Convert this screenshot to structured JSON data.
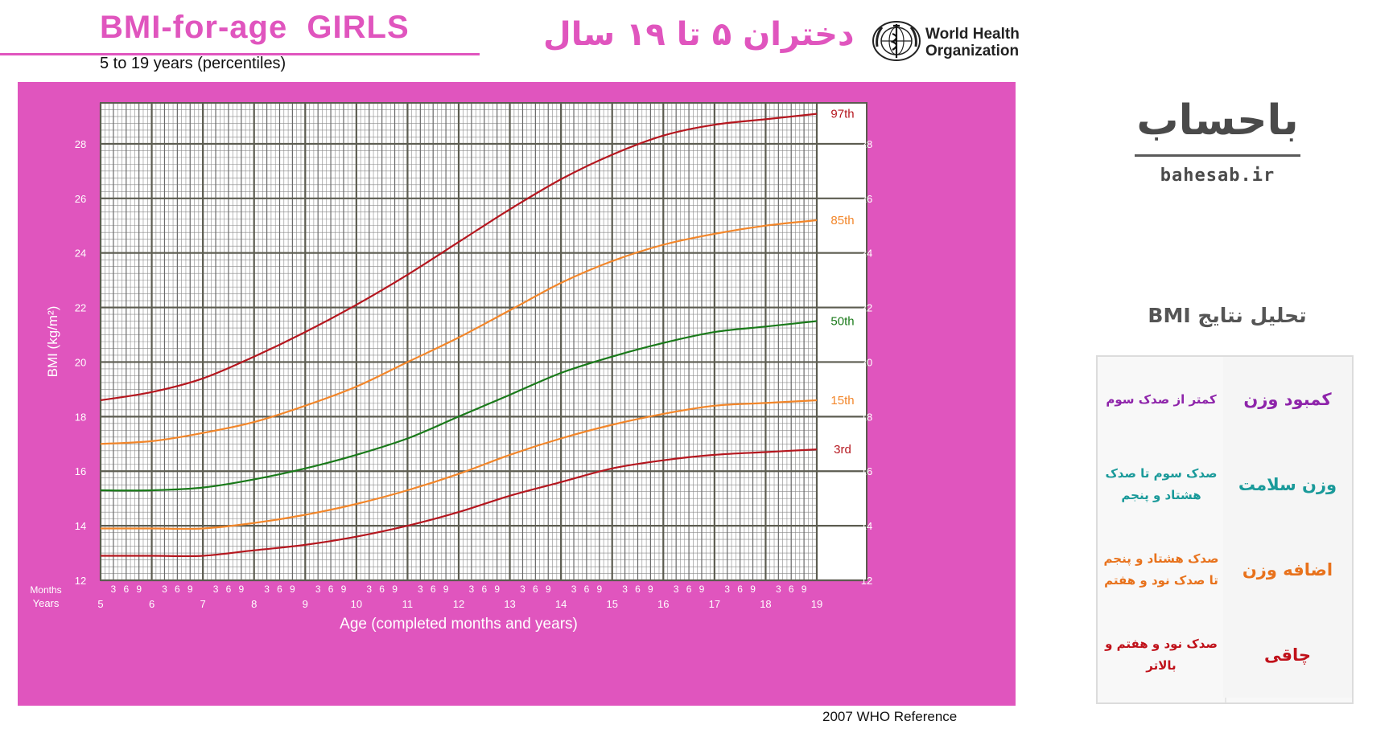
{
  "header": {
    "title": "BMI-for-age  GIRLS",
    "subtitle": "5 to 19 years (percentiles)",
    "title_fa": "دختران ۵ تا ۱۹ سال",
    "who_line1": "World Health",
    "who_line2": "Organization",
    "accent_color": "#e055be"
  },
  "footer": {
    "reference": "2007 WHO Reference"
  },
  "brand": {
    "logo_text": "باحساب",
    "url": "bahesab.ir"
  },
  "analysis": {
    "title": "تحلیل نتایج BMI",
    "rows": [
      {
        "status": "کمبود وزن",
        "range": "کمتر از صدک سوم",
        "color": "#8e24aa"
      },
      {
        "status": "وزن سلامت",
        "range": "صدک سوم تا صدک هشتاد و پنجم",
        "color": "#1a9a9a"
      },
      {
        "status": "اضافه وزن",
        "range": "صدک هشتاد و پنجم تا صدک نود و هفتم",
        "color": "#e8721c"
      },
      {
        "status": "چاقی",
        "range": "صدک نود و هفتم و بالاتر",
        "color": "#c0111a"
      }
    ]
  },
  "chart_data": {
    "type": "line",
    "title": "BMI-for-age  GIRLS",
    "subtitle": "5 to 19 years (percentiles)",
    "xlabel": "Age (completed months and years)",
    "ylabel": "BMI (kg/m²)",
    "xlim": [
      5,
      19
    ],
    "ylim": [
      12,
      29.5
    ],
    "x_ticks": [
      5,
      6,
      7,
      8,
      9,
      10,
      11,
      12,
      13,
      14,
      15,
      16,
      17,
      18,
      19
    ],
    "y_ticks": [
      12,
      14,
      16,
      18,
      20,
      22,
      24,
      26,
      28
    ],
    "month_ticks": [
      "3",
      "6",
      "9"
    ],
    "row_label_months": "Months",
    "row_label_years": "Years",
    "grid": true,
    "series": [
      {
        "name": "97th",
        "color": "#b5171f",
        "x": [
          5,
          6,
          7,
          8,
          9,
          10,
          11,
          12,
          13,
          14,
          15,
          16,
          17,
          18,
          19
        ],
        "values": [
          18.6,
          18.9,
          19.4,
          20.2,
          21.1,
          22.1,
          23.2,
          24.4,
          25.6,
          26.7,
          27.6,
          28.3,
          28.7,
          28.9,
          29.1
        ]
      },
      {
        "name": "85th",
        "color": "#f2862a",
        "x": [
          5,
          6,
          7,
          8,
          9,
          10,
          11,
          12,
          13,
          14,
          15,
          16,
          17,
          18,
          19
        ],
        "values": [
          17.0,
          17.1,
          17.4,
          17.8,
          18.4,
          19.1,
          20.0,
          20.9,
          21.9,
          22.9,
          23.7,
          24.3,
          24.7,
          25.0,
          25.2
        ]
      },
      {
        "name": "50th",
        "color": "#1a7a1a",
        "x": [
          5,
          6,
          7,
          8,
          9,
          10,
          11,
          12,
          13,
          14,
          15,
          16,
          17,
          18,
          19
        ],
        "values": [
          15.3,
          15.3,
          15.4,
          15.7,
          16.1,
          16.6,
          17.2,
          18.0,
          18.8,
          19.6,
          20.2,
          20.7,
          21.1,
          21.3,
          21.5
        ]
      },
      {
        "name": "15th",
        "color": "#f2862a",
        "x": [
          5,
          6,
          7,
          8,
          9,
          10,
          11,
          12,
          13,
          14,
          15,
          16,
          17,
          18,
          19
        ],
        "values": [
          13.9,
          13.9,
          13.9,
          14.1,
          14.4,
          14.8,
          15.3,
          15.9,
          16.6,
          17.2,
          17.7,
          18.1,
          18.4,
          18.5,
          18.6
        ]
      },
      {
        "name": "3rd",
        "color": "#b5171f",
        "x": [
          5,
          6,
          7,
          8,
          9,
          10,
          11,
          12,
          13,
          14,
          15,
          16,
          17,
          18,
          19
        ],
        "values": [
          12.9,
          12.9,
          12.9,
          13.1,
          13.3,
          13.6,
          14.0,
          14.5,
          15.1,
          15.6,
          16.1,
          16.4,
          16.6,
          16.7,
          16.8
        ]
      }
    ]
  }
}
